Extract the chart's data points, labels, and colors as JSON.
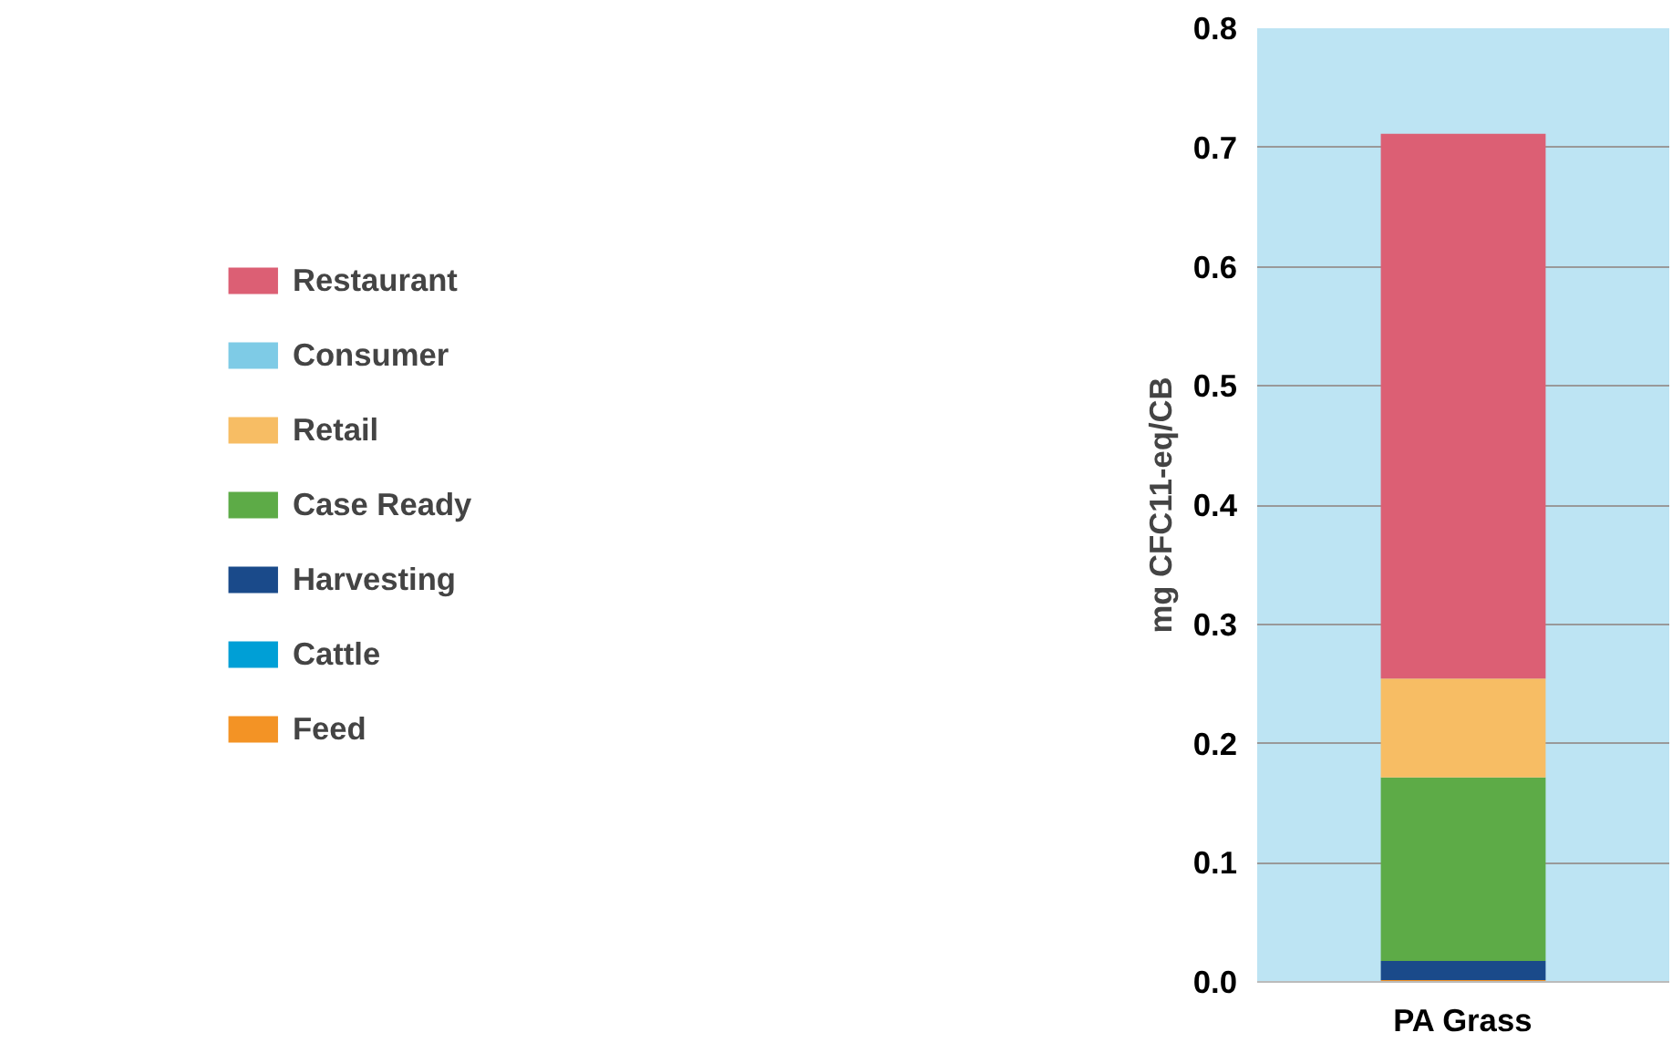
{
  "chart_data": {
    "type": "bar",
    "stacked": true,
    "ylabel": "mg CFC11-eq/CB",
    "categories": [
      "PA Grass"
    ],
    "series": [
      {
        "name": "Feed",
        "color": "#f39325",
        "values": [
          0.0015
        ]
      },
      {
        "name": "Cattle",
        "color": "#009fd6",
        "values": [
          0
        ]
      },
      {
        "name": "Harvesting",
        "color": "#1a4a8a",
        "values": [
          0.016
        ]
      },
      {
        "name": "Case Ready",
        "color": "#5dab47",
        "values": [
          0.154
        ]
      },
      {
        "name": "Retail",
        "color": "#f7bd64",
        "values": [
          0.083
        ]
      },
      {
        "name": "Consumer",
        "color": "#7ecbe6",
        "values": [
          0
        ]
      },
      {
        "name": "Restaurant",
        "color": "#dc5f74",
        "values": [
          0.457
        ]
      }
    ],
    "ylim": [
      0,
      0.8
    ],
    "yticks": [
      {
        "value": 0,
        "label": "0.0"
      },
      0.1,
      0.2,
      0.3,
      0.4,
      0.5,
      0.6,
      0.7,
      0.8
    ],
    "grid": "y",
    "legend": "left"
  }
}
